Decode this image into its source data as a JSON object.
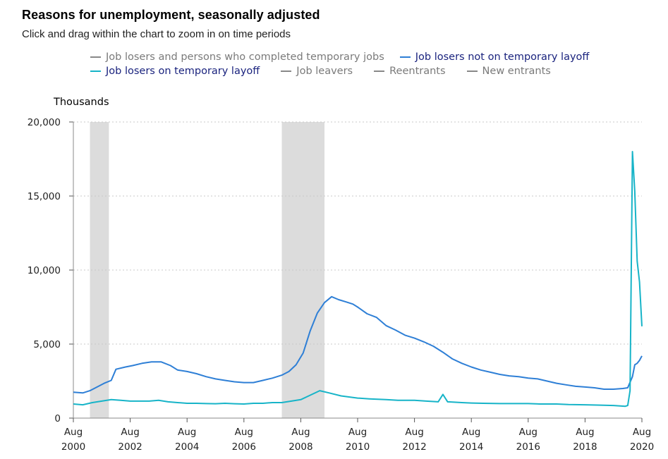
{
  "header": {
    "title": "Reasons for unemployment, seasonally adjusted",
    "subtitle": "Click and drag within the chart to zoom in on time periods"
  },
  "legend": {
    "items": [
      {
        "label": "Job losers and persons who completed temporary jobs",
        "color": "#888888",
        "active": false
      },
      {
        "label": "Job losers not on temporary layoff",
        "color": "#2e7fd6",
        "active": true
      },
      {
        "label": "Job losers on temporary layoff",
        "color": "#17b4c8",
        "active": true
      },
      {
        "label": "Job leavers",
        "color": "#888888",
        "active": false
      },
      {
        "label": "Reentrants",
        "color": "#888888",
        "active": false
      },
      {
        "label": "New entrants",
        "color": "#888888",
        "active": false
      }
    ]
  },
  "chart_data": {
    "type": "line",
    "title": "Reasons for unemployment, seasonally adjusted",
    "ylabel": "Thousands",
    "xlabel": "",
    "ylim": [
      0,
      20000
    ],
    "xlim": [
      "2000-08",
      "2020-08"
    ],
    "yticks": [
      0,
      5000,
      10000,
      15000,
      20000
    ],
    "ytick_labels": [
      "0",
      "5,000",
      "10,000",
      "15,000",
      "20,000"
    ],
    "xticks": [
      {
        "month": "Aug",
        "year": "2000",
        "date": "2000-08"
      },
      {
        "month": "Aug",
        "year": "2002",
        "date": "2002-08"
      },
      {
        "month": "Aug",
        "year": "2004",
        "date": "2004-08"
      },
      {
        "month": "Aug",
        "year": "2006",
        "date": "2006-08"
      },
      {
        "month": "Aug",
        "year": "2008",
        "date": "2008-08"
      },
      {
        "month": "Aug",
        "year": "2010",
        "date": "2010-08"
      },
      {
        "month": "Aug",
        "year": "2012",
        "date": "2012-08"
      },
      {
        "month": "Aug",
        "year": "2014",
        "date": "2014-08"
      },
      {
        "month": "Aug",
        "year": "2016",
        "date": "2016-08"
      },
      {
        "month": "Aug",
        "year": "2018",
        "date": "2018-08"
      },
      {
        "month": "Aug",
        "year": "2020",
        "date": "2020-08"
      }
    ],
    "recessions": [
      {
        "start": "2001-03",
        "end": "2001-11"
      },
      {
        "start": "2007-12",
        "end": "2009-06"
      }
    ],
    "grid": true,
    "series": [
      {
        "name": "Job losers not on temporary layoff",
        "color": "#2e7fd6",
        "points": [
          [
            "2000-08",
            1750
          ],
          [
            "2000-12",
            1700
          ],
          [
            "2001-03",
            1850
          ],
          [
            "2001-06",
            2100
          ],
          [
            "2001-09",
            2350
          ],
          [
            "2001-12",
            2550
          ],
          [
            "2002-02",
            3300
          ],
          [
            "2002-06",
            3450
          ],
          [
            "2002-09",
            3550
          ],
          [
            "2003-01",
            3700
          ],
          [
            "2003-05",
            3800
          ],
          [
            "2003-09",
            3800
          ],
          [
            "2004-01",
            3550
          ],
          [
            "2004-04",
            3250
          ],
          [
            "2004-08",
            3150
          ],
          [
            "2004-12",
            3000
          ],
          [
            "2005-04",
            2800
          ],
          [
            "2005-08",
            2650
          ],
          [
            "2005-12",
            2550
          ],
          [
            "2006-04",
            2450
          ],
          [
            "2006-08",
            2400
          ],
          [
            "2006-12",
            2400
          ],
          [
            "2007-04",
            2550
          ],
          [
            "2007-08",
            2700
          ],
          [
            "2007-12",
            2900
          ],
          [
            "2008-03",
            3150
          ],
          [
            "2008-06",
            3600
          ],
          [
            "2008-09",
            4400
          ],
          [
            "2008-12",
            5900
          ],
          [
            "2009-03",
            7100
          ],
          [
            "2009-06",
            7800
          ],
          [
            "2009-09",
            8200
          ],
          [
            "2009-12",
            8000
          ],
          [
            "2010-03",
            7850
          ],
          [
            "2010-06",
            7700
          ],
          [
            "2010-08",
            7500
          ],
          [
            "2010-12",
            7050
          ],
          [
            "2011-04",
            6800
          ],
          [
            "2011-08",
            6250
          ],
          [
            "2011-12",
            5950
          ],
          [
            "2012-04",
            5600
          ],
          [
            "2012-08",
            5400
          ],
          [
            "2012-12",
            5150
          ],
          [
            "2013-04",
            4850
          ],
          [
            "2013-08",
            4450
          ],
          [
            "2013-12",
            4000
          ],
          [
            "2014-04",
            3700
          ],
          [
            "2014-08",
            3450
          ],
          [
            "2014-12",
            3250
          ],
          [
            "2015-04",
            3100
          ],
          [
            "2015-08",
            2950
          ],
          [
            "2015-12",
            2850
          ],
          [
            "2016-04",
            2800
          ],
          [
            "2016-08",
            2700
          ],
          [
            "2016-12",
            2650
          ],
          [
            "2017-04",
            2500
          ],
          [
            "2017-08",
            2350
          ],
          [
            "2017-12",
            2250
          ],
          [
            "2018-04",
            2150
          ],
          [
            "2018-08",
            2100
          ],
          [
            "2018-12",
            2050
          ],
          [
            "2019-04",
            1950
          ],
          [
            "2019-08",
            1950
          ],
          [
            "2019-12",
            2000
          ],
          [
            "2020-02",
            2050
          ],
          [
            "2020-04",
            2800
          ],
          [
            "2020-05",
            3600
          ],
          [
            "2020-06",
            3700
          ],
          [
            "2020-07",
            3900
          ],
          [
            "2020-08",
            4200
          ]
        ]
      },
      {
        "name": "Job losers on temporary layoff",
        "color": "#17b4c8",
        "points": [
          [
            "2000-08",
            950
          ],
          [
            "2000-12",
            900
          ],
          [
            "2001-04",
            1050
          ],
          [
            "2001-08",
            1150
          ],
          [
            "2001-12",
            1250
          ],
          [
            "2002-04",
            1200
          ],
          [
            "2002-08",
            1150
          ],
          [
            "2002-12",
            1150
          ],
          [
            "2003-04",
            1150
          ],
          [
            "2003-08",
            1200
          ],
          [
            "2003-12",
            1100
          ],
          [
            "2004-04",
            1050
          ],
          [
            "2004-08",
            1000
          ],
          [
            "2004-12",
            1000
          ],
          [
            "2005-04",
            980
          ],
          [
            "2005-08",
            970
          ],
          [
            "2005-12",
            1000
          ],
          [
            "2006-04",
            970
          ],
          [
            "2006-08",
            950
          ],
          [
            "2006-12",
            1000
          ],
          [
            "2007-04",
            1000
          ],
          [
            "2007-08",
            1050
          ],
          [
            "2007-12",
            1050
          ],
          [
            "2008-04",
            1150
          ],
          [
            "2008-08",
            1250
          ],
          [
            "2008-12",
            1550
          ],
          [
            "2009-04",
            1850
          ],
          [
            "2009-08",
            1700
          ],
          [
            "2010-01",
            1500
          ],
          [
            "2010-08",
            1350
          ],
          [
            "2011-01",
            1300
          ],
          [
            "2011-08",
            1250
          ],
          [
            "2012-01",
            1200
          ],
          [
            "2012-08",
            1200
          ],
          [
            "2013-01",
            1150
          ],
          [
            "2013-06",
            1100
          ],
          [
            "2013-08",
            1600
          ],
          [
            "2013-10",
            1100
          ],
          [
            "2014-04",
            1050
          ],
          [
            "2014-08",
            1020
          ],
          [
            "2015-01",
            1000
          ],
          [
            "2015-08",
            980
          ],
          [
            "2016-01",
            980
          ],
          [
            "2016-08",
            980
          ],
          [
            "2017-01",
            950
          ],
          [
            "2017-08",
            950
          ],
          [
            "2018-01",
            920
          ],
          [
            "2018-08",
            900
          ],
          [
            "2019-01",
            880
          ],
          [
            "2019-08",
            850
          ],
          [
            "2020-01",
            800
          ],
          [
            "2020-02",
            850
          ],
          [
            "2020-03",
            1850
          ],
          [
            "2020-04",
            18000
          ],
          [
            "2020-05",
            15300
          ],
          [
            "2020-06",
            10600
          ],
          [
            "2020-07",
            9200
          ],
          [
            "2020-08",
            6200
          ]
        ]
      }
    ]
  }
}
